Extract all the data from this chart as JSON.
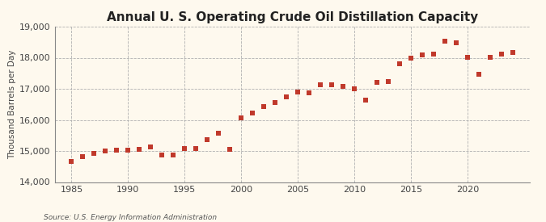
{
  "title": "Annual U. S. Operating Crude Oil Distillation Capacity",
  "ylabel": "Thousand Barrels per Day",
  "source": "Source: U.S. Energy Information Administration",
  "background_color": "#fef9ee",
  "marker_color": "#c0392b",
  "xlim": [
    1983.5,
    2025.5
  ],
  "ylim": [
    14000,
    19000
  ],
  "yticks": [
    14000,
    15000,
    16000,
    17000,
    18000,
    19000
  ],
  "xticks": [
    1985,
    1990,
    1995,
    2000,
    2005,
    2010,
    2015,
    2020
  ],
  "years": [
    1985,
    1986,
    1987,
    1988,
    1989,
    1990,
    1991,
    1992,
    1993,
    1994,
    1995,
    1996,
    1997,
    1998,
    1999,
    2000,
    2001,
    2002,
    2003,
    2004,
    2005,
    2006,
    2007,
    2008,
    2009,
    2010,
    2011,
    2012,
    2013,
    2014,
    2015,
    2016,
    2017,
    2018,
    2019,
    2020,
    2021,
    2022,
    2023,
    2024
  ],
  "values": [
    14650,
    14830,
    14930,
    14990,
    15020,
    15030,
    15060,
    15120,
    14870,
    14870,
    15070,
    15070,
    15360,
    15580,
    15040,
    16070,
    16230,
    16420,
    16560,
    16730,
    16900,
    16870,
    17130,
    17130,
    17090,
    16990,
    16640,
    17210,
    17240,
    17800,
    17980,
    18100,
    18110,
    18520,
    18490,
    18020,
    17460,
    18010,
    18110,
    18180
  ],
  "title_fontsize": 11,
  "ylabel_fontsize": 7.5,
  "tick_fontsize": 8,
  "source_fontsize": 6.5,
  "marker_size": 14
}
